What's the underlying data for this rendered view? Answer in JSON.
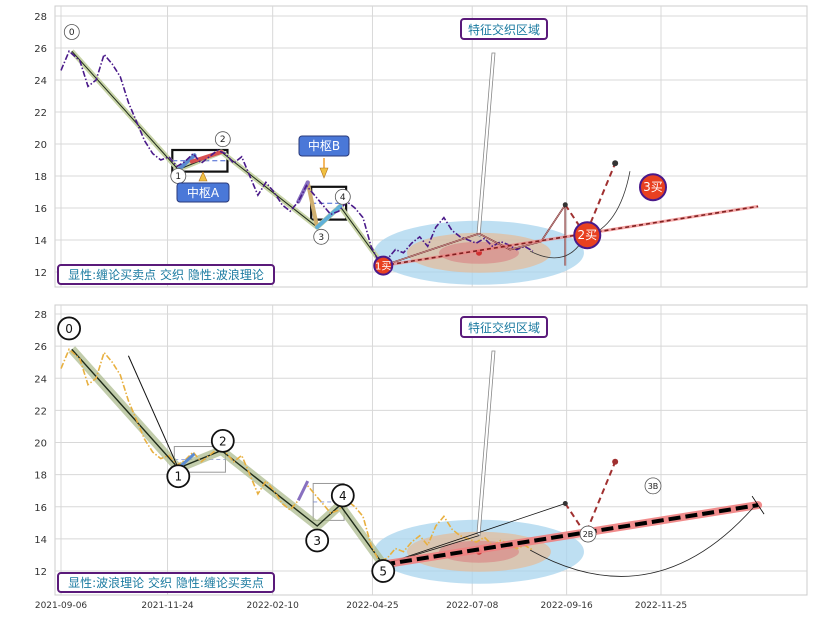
{
  "chart_data": [
    {
      "type": "line",
      "panel": "top",
      "title": "",
      "xlabel": "",
      "ylabel": "",
      "ylim": [
        11,
        28.5
      ],
      "yticks": [
        12,
        14,
        16,
        18,
        20,
        22,
        24,
        26,
        28
      ],
      "grid": true,
      "annotation_box": "特征交织区域",
      "caption": "显性:缠论买卖点 交织 隐性:波浪理论",
      "pivot_labels": [
        "中枢A",
        "中枢B"
      ],
      "point_labels": [
        "0",
        "1",
        "2",
        "3",
        "4"
      ],
      "buy_labels": [
        "1买",
        "2买",
        "3买"
      ],
      "series": [
        {
          "name": "price",
          "style": "dash-dot purple",
          "x": [
            "2021-09-06",
            "2021-09-12",
            "2021-09-20",
            "2021-09-26",
            "2021-10-02",
            "2021-10-08",
            "2021-10-14",
            "2021-10-20",
            "2021-10-26",
            "2021-11-01",
            "2021-11-07",
            "2021-11-13",
            "2021-11-19",
            "2021-11-25",
            "2021-12-01",
            "2021-12-07",
            "2021-12-13",
            "2021-12-19",
            "2021-12-25",
            "2021-12-31",
            "2022-01-06",
            "2022-01-12",
            "2022-01-18",
            "2022-01-24",
            "2022-01-30",
            "2022-02-05",
            "2022-02-11",
            "2022-02-17",
            "2022-02-23",
            "2022-03-01",
            "2022-03-07",
            "2022-03-13",
            "2022-03-19",
            "2022-03-25",
            "2022-03-31",
            "2022-04-06",
            "2022-04-12",
            "2022-04-18",
            "2022-04-24",
            "2022-04-30",
            "2022-05-06",
            "2022-05-12",
            "2022-05-18",
            "2022-05-24",
            "2022-05-30",
            "2022-06-05",
            "2022-06-11",
            "2022-06-17",
            "2022-06-23",
            "2022-06-29",
            "2022-07-05",
            "2022-07-11",
            "2022-07-17",
            "2022-07-23",
            "2022-07-29",
            "2022-08-04",
            "2022-08-10",
            "2022-08-16",
            "2022-08-22"
          ],
          "y": [
            24.6,
            25.8,
            25.2,
            23.6,
            24.0,
            25.6,
            25.0,
            24.2,
            22.6,
            21.4,
            20.2,
            19.4,
            19.0,
            19.2,
            18.6,
            18.9,
            19.4,
            18.8,
            19.2,
            19.6,
            19.4,
            18.8,
            19.2,
            18.0,
            16.8,
            17.6,
            17.0,
            16.2,
            15.8,
            16.4,
            17.4,
            16.8,
            16.2,
            15.6,
            15.8,
            16.4,
            16.0,
            15.4,
            13.6,
            12.6,
            12.8,
            13.4,
            13.2,
            13.8,
            14.2,
            13.6,
            14.8,
            15.4,
            14.6,
            14.2,
            14.0,
            13.8,
            14.1,
            13.6,
            13.9,
            13.7,
            13.4,
            13.6,
            13.3
          ]
        },
        {
          "name": "stroke",
          "style": "solid thin with olive band",
          "x": [
            "2021-09-14",
            "2021-12-02",
            "2022-01-03",
            "2022-03-15",
            "2022-04-01",
            "2022-05-03"
          ],
          "y": [
            25.8,
            18.4,
            19.5,
            14.8,
            16.1,
            12.4
          ]
        },
        {
          "name": "post-low strokes",
          "style": "dark brown",
          "x": [
            "2022-05-03",
            "2022-07-13",
            "2022-08-05",
            "2022-08-28",
            "2022-09-15",
            "2022-09-15"
          ],
          "y": [
            12.4,
            14.4,
            13.4,
            13.9,
            16.2,
            12.4
          ]
        },
        {
          "name": "trend",
          "style": "dotted red",
          "x": [
            "2022-05-03",
            "2023-02-05"
          ],
          "y": [
            12.4,
            16.1
          ]
        },
        {
          "name": "projection",
          "style": "dashed brown",
          "x": [
            "2022-09-15",
            "2022-09-30",
            "2022-10-22"
          ],
          "y": [
            16.2,
            14.3,
            18.8
          ]
        }
      ],
      "pivot_boxes": [
        {
          "name": "中枢A",
          "x": [
            "2021-12-02",
            "2022-01-03"
          ],
          "y": [
            18.4,
            19.5
          ]
        },
        {
          "name": "中枢B",
          "x": [
            "2022-03-15",
            "2022-04-01"
          ],
          "y": [
            15.4,
            17.2
          ]
        }
      ],
      "intersection_ellipse_center": {
        "x": "2022-07-13",
        "y": 13.2
      }
    },
    {
      "type": "line",
      "panel": "bottom",
      "title": "",
      "xlabel": "",
      "ylabel": "",
      "ylim": [
        11,
        28.5
      ],
      "yticks": [
        12,
        14,
        16,
        18,
        20,
        22,
        24,
        26,
        28
      ],
      "xticks": [
        "2021-09-06",
        "2021-11-24",
        "2022-02-10",
        "2022-04-25",
        "2022-07-08",
        "2022-09-16",
        "2022-11-25"
      ],
      "grid": true,
      "annotation_box": "特征交织区域",
      "caption": "显性:波浪理论 交织 隐性:缠论买卖点",
      "wave_labels": [
        "0",
        "1",
        "2",
        "3",
        "4",
        "5"
      ],
      "buy_labels": [
        "2B",
        "3B"
      ],
      "series": [
        {
          "name": "price",
          "style": "dash-dot orange",
          "x": [
            "2021-09-06",
            "2021-09-12",
            "2021-09-20",
            "2021-09-26",
            "2021-10-02",
            "2021-10-08",
            "2021-10-14",
            "2021-10-20",
            "2021-10-26",
            "2021-11-01",
            "2021-11-07",
            "2021-11-13",
            "2021-11-19",
            "2021-11-25",
            "2021-12-01",
            "2021-12-07",
            "2021-12-13",
            "2021-12-19",
            "2021-12-25",
            "2021-12-31",
            "2022-01-06",
            "2022-01-12",
            "2022-01-18",
            "2022-01-24",
            "2022-01-30",
            "2022-02-05",
            "2022-02-11",
            "2022-02-17",
            "2022-02-23",
            "2022-03-01",
            "2022-03-07",
            "2022-03-13",
            "2022-03-19",
            "2022-03-25",
            "2022-03-31",
            "2022-04-06",
            "2022-04-12",
            "2022-04-18",
            "2022-04-24",
            "2022-04-30",
            "2022-05-06",
            "2022-05-12",
            "2022-05-18",
            "2022-05-24",
            "2022-05-30",
            "2022-06-05",
            "2022-06-11",
            "2022-06-17",
            "2022-06-23",
            "2022-06-29",
            "2022-07-05",
            "2022-07-11",
            "2022-07-17",
            "2022-07-23",
            "2022-07-29",
            "2022-08-04",
            "2022-08-10",
            "2022-08-16",
            "2022-08-22"
          ],
          "y": [
            24.6,
            25.8,
            25.2,
            23.6,
            24.0,
            25.6,
            25.0,
            24.2,
            22.6,
            21.4,
            20.2,
            19.4,
            19.0,
            19.2,
            18.6,
            18.9,
            19.4,
            18.8,
            19.2,
            19.6,
            19.4,
            18.8,
            19.2,
            18.0,
            16.8,
            17.6,
            17.0,
            16.2,
            15.8,
            16.4,
            17.4,
            16.8,
            16.2,
            15.6,
            15.8,
            16.4,
            16.0,
            15.4,
            13.6,
            12.6,
            12.8,
            13.4,
            13.2,
            13.8,
            14.2,
            13.6,
            14.8,
            15.4,
            14.6,
            14.2,
            14.0,
            13.8,
            14.1,
            13.6,
            13.9,
            13.7,
            13.4,
            13.6,
            13.3
          ]
        },
        {
          "name": "wave",
          "style": "thick olive band",
          "x": [
            "2021-09-14",
            "2021-12-02",
            "2022-01-03",
            "2022-03-15",
            "2022-04-01",
            "2022-05-03"
          ],
          "y": [
            25.8,
            18.4,
            19.5,
            14.8,
            16.1,
            12.4
          ]
        },
        {
          "name": "trend",
          "style": "thick black dashed on red band",
          "x": [
            "2022-05-03",
            "2023-02-05"
          ],
          "y": [
            12.4,
            16.1
          ]
        },
        {
          "name": "projection",
          "style": "dashed brown",
          "x": [
            "2022-09-15",
            "2022-09-30",
            "2022-10-22"
          ],
          "y": [
            16.2,
            14.3,
            18.8
          ]
        }
      ],
      "intersection_ellipse_center": {
        "x": "2022-07-13",
        "y": 13.2
      }
    }
  ]
}
